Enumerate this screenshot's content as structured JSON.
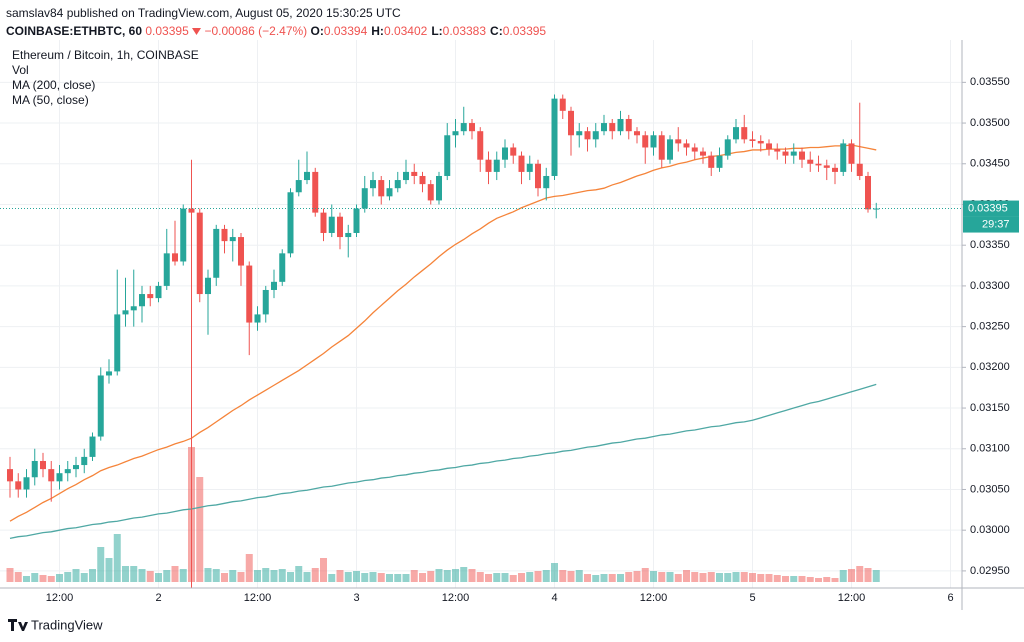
{
  "header": {
    "published": "samslav84 published on TradingView.com, August 05, 2020 15:30:25 UTC",
    "symbol": "COINBASE:ETHBTC, 60",
    "last": "0.03395",
    "change": "−0.00086 (−2.47%)",
    "ohlc": [
      {
        "label": "O:",
        "value": "0.03394"
      },
      {
        "label": "H:",
        "value": "0.03402"
      },
      {
        "label": "L:",
        "value": "0.03383"
      },
      {
        "label": "C:",
        "value": "0.03395"
      }
    ]
  },
  "chart_data": {
    "type": "candlestick",
    "title": "Ethereum / Bitcoin, 1h, COINBASE",
    "up_color": "#26a69a",
    "down_color": "#ef5350",
    "grid": true,
    "categories": [
      null,
      null,
      null,
      null,
      null,
      null,
      "12:00",
      null,
      null,
      null,
      null,
      null,
      null,
      null,
      null,
      null,
      null,
      null,
      "2",
      null,
      null,
      null,
      null,
      null,
      null,
      null,
      null,
      null,
      null,
      null,
      "12:00",
      null,
      null,
      null,
      null,
      null,
      null,
      null,
      null,
      null,
      null,
      null,
      "3",
      null,
      null,
      null,
      null,
      null,
      null,
      null,
      null,
      null,
      null,
      null,
      "12:00",
      null,
      null,
      null,
      null,
      null,
      null,
      null,
      null,
      null,
      null,
      null,
      "4",
      null,
      null,
      null,
      null,
      null,
      null,
      null,
      null,
      null,
      null,
      null,
      "12:00",
      null,
      null,
      null,
      null,
      null,
      null,
      null,
      null,
      null,
      null,
      null,
      "5",
      null,
      null,
      null,
      null,
      null,
      null,
      null,
      null,
      null,
      null,
      null,
      "12:00",
      null,
      null,
      null,
      null,
      null,
      null,
      null,
      null,
      null,
      null,
      null,
      "6",
      null
    ],
    "open": [
      0.03075,
      0.0306,
      0.0305,
      0.03065,
      0.03085,
      0.03075,
      0.0306,
      0.0307,
      0.03075,
      0.0308,
      0.0309,
      0.03115,
      0.0319,
      0.03195,
      0.03265,
      0.0327,
      0.03275,
      0.0329,
      0.03285,
      0.033,
      0.0334,
      0.0333,
      0.03395,
      0.0339,
      0.0329,
      0.0331,
      0.0337,
      0.03355,
      0.0336,
      0.03325,
      0.03255,
      0.03265,
      0.03295,
      0.03305,
      0.0334,
      0.03415,
      0.0343,
      0.0344,
      0.0339,
      0.03365,
      0.03385,
      0.0336,
      0.03365,
      0.03395,
      0.0342,
      0.0343,
      0.0341,
      0.0342,
      0.0343,
      0.0344,
      0.03435,
      0.03425,
      0.03405,
      0.03435,
      0.03485,
      0.0349,
      0.035,
      0.0349,
      0.03455,
      0.0344,
      0.03455,
      0.0347,
      0.0346,
      0.0344,
      0.0345,
      0.0342,
      0.03435,
      0.0353,
      0.03515,
      0.03485,
      0.0349,
      0.0348,
      0.0349,
      0.035,
      0.0349,
      0.03505,
      0.0349,
      0.03485,
      0.0347,
      0.03485,
      0.03455,
      0.0348,
      0.03475,
      0.0347,
      0.03465,
      0.0346,
      0.03445,
      0.0346,
      0.0348,
      0.03495,
      0.0348,
      0.03478,
      0.03475,
      0.03468,
      0.03465,
      0.0346,
      0.03465,
      0.03455,
      0.0345,
      0.03448,
      0.03445,
      0.0344,
      0.03475,
      0.0345,
      0.03435,
      0.03394,
      null,
      null,
      null,
      null,
      null,
      null,
      null,
      null,
      null,
      null
    ],
    "high": [
      0.0309,
      0.0307,
      0.03075,
      0.031,
      0.03095,
      0.03085,
      0.0308,
      0.03085,
      0.0309,
      0.031,
      0.0312,
      0.032,
      0.0321,
      0.0332,
      0.0331,
      0.0332,
      0.033,
      0.033,
      0.03305,
      0.0337,
      0.0338,
      0.034,
      0.03455,
      0.03395,
      0.0332,
      0.03375,
      0.03375,
      0.0337,
      0.03365,
      0.0333,
      0.03275,
      0.033,
      0.0332,
      0.03345,
      0.0342,
      0.03455,
      0.03465,
      0.03445,
      0.03395,
      0.034,
      0.0339,
      0.03375,
      0.034,
      0.03435,
      0.0344,
      0.03435,
      0.0343,
      0.0344,
      0.03455,
      0.0345,
      0.0344,
      0.0343,
      0.0344,
      0.035,
      0.03505,
      0.0352,
      0.03505,
      0.03495,
      0.03465,
      0.03465,
      0.0348,
      0.03475,
      0.03465,
      0.0346,
      0.03455,
      0.03445,
      0.03535,
      0.03535,
      0.0352,
      0.035,
      0.03495,
      0.035,
      0.0351,
      0.03505,
      0.03515,
      0.0351,
      0.03495,
      0.0349,
      0.0349,
      0.0349,
      0.03485,
      0.03495,
      0.0348,
      0.03475,
      0.0347,
      0.03465,
      0.0347,
      0.03485,
      0.03505,
      0.0351,
      0.0349,
      0.03485,
      0.0348,
      0.03475,
      0.0347,
      0.03475,
      0.0347,
      0.03465,
      0.0346,
      0.03455,
      0.0345,
      0.0348,
      0.0348,
      0.03525,
      0.0344,
      0.03402,
      null,
      null,
      null,
      null,
      null,
      null,
      null,
      null,
      null,
      null
    ],
    "low": [
      0.0304,
      0.0304,
      0.0304,
      0.03055,
      0.03065,
      0.03035,
      0.0305,
      0.0306,
      0.03065,
      0.0307,
      0.03085,
      0.0311,
      0.0318,
      0.0319,
      0.0325,
      0.0325,
      0.03255,
      0.03275,
      0.0328,
      0.03295,
      0.03325,
      0.03325,
      0.0291,
      0.0328,
      0.0324,
      0.033,
      0.0334,
      0.0333,
      0.033,
      0.03215,
      0.03245,
      0.03255,
      0.03285,
      0.033,
      0.03335,
      0.0341,
      0.03425,
      0.03385,
      0.03355,
      0.0336,
      0.03345,
      0.03335,
      0.0336,
      0.0339,
      0.0341,
      0.034,
      0.03405,
      0.03415,
      0.03425,
      0.03425,
      0.03415,
      0.034,
      0.034,
      0.0343,
      0.0347,
      0.03485,
      0.0348,
      0.0344,
      0.03425,
      0.0343,
      0.03445,
      0.0345,
      0.03425,
      0.0343,
      0.0341,
      0.03405,
      0.0343,
      0.03505,
      0.0346,
      0.0347,
      0.03465,
      0.0347,
      0.03485,
      0.0348,
      0.03485,
      0.0348,
      0.03475,
      0.0345,
      0.0346,
      0.03445,
      0.0345,
      0.03465,
      0.0346,
      0.03455,
      0.0345,
      0.03435,
      0.0344,
      0.03455,
      0.03475,
      0.03475,
      0.0347,
      0.03465,
      0.0346,
      0.03455,
      0.0345,
      0.0345,
      0.03445,
      0.0344,
      0.0344,
      0.0343,
      0.03425,
      0.03435,
      0.0344,
      0.0343,
      0.0339,
      0.03383,
      null,
      null,
      null,
      null,
      null,
      null,
      null,
      null,
      null,
      null
    ],
    "close": [
      0.0306,
      0.0305,
      0.03065,
      0.03085,
      0.03075,
      0.0306,
      0.0307,
      0.03075,
      0.0308,
      0.0309,
      0.03115,
      0.0319,
      0.03195,
      0.03265,
      0.0327,
      0.03275,
      0.0329,
      0.03285,
      0.033,
      0.0334,
      0.0333,
      0.03395,
      0.0339,
      0.0329,
      0.0331,
      0.0337,
      0.03355,
      0.0336,
      0.03325,
      0.03255,
      0.03265,
      0.03295,
      0.03305,
      0.0334,
      0.03415,
      0.0343,
      0.0344,
      0.0339,
      0.03365,
      0.03385,
      0.0336,
      0.03365,
      0.03395,
      0.0342,
      0.0343,
      0.0341,
      0.0342,
      0.0343,
      0.0344,
      0.03435,
      0.03425,
      0.03405,
      0.03435,
      0.03485,
      0.0349,
      0.035,
      0.0349,
      0.03455,
      0.0344,
      0.03455,
      0.0347,
      0.0346,
      0.0344,
      0.0345,
      0.0342,
      0.03435,
      0.0353,
      0.03515,
      0.03485,
      0.0349,
      0.0348,
      0.0349,
      0.035,
      0.0349,
      0.03505,
      0.0349,
      0.03485,
      0.0347,
      0.03485,
      0.03455,
      0.0348,
      0.03475,
      0.0347,
      0.03465,
      0.0346,
      0.03445,
      0.0346,
      0.0348,
      0.03495,
      0.0348,
      0.03478,
      0.03475,
      0.03468,
      0.03465,
      0.0346,
      0.03465,
      0.03455,
      0.0345,
      0.03448,
      0.03445,
      0.0344,
      0.03475,
      0.0345,
      0.03435,
      0.03394,
      0.03395,
      null,
      null,
      null,
      null,
      null,
      null,
      null,
      null,
      null,
      null
    ],
    "volume": {
      "name": "Vol",
      "up_color": "rgba(38,166,154,0.5)",
      "down_color": "rgba(239,83,80,0.5)",
      "values": [
        14,
        10,
        6,
        9,
        7,
        6,
        8,
        10,
        13,
        9,
        13,
        35,
        24,
        48,
        16,
        16,
        13,
        11,
        9,
        12,
        16,
        13,
        135,
        105,
        14,
        13,
        9,
        12,
        10,
        28,
        12,
        14,
        12,
        13,
        10,
        16,
        10,
        14,
        24,
        8,
        12,
        10,
        11,
        9,
        10,
        9,
        8,
        8,
        8,
        12,
        9,
        11,
        13,
        12,
        13,
        15,
        13,
        10,
        8,
        9,
        9,
        7,
        9,
        10,
        11,
        12,
        19,
        12,
        11,
        12,
        8,
        7,
        8,
        8,
        8,
        10,
        11,
        14,
        11,
        10,
        10,
        8,
        12,
        10,
        9,
        10,
        9,
        9,
        10,
        10,
        9,
        8,
        8,
        7,
        6,
        6,
        6,
        5,
        4,
        5,
        4,
        12,
        13,
        16,
        14,
        12,
        null,
        null,
        null,
        null,
        null,
        null,
        null,
        null,
        null,
        null
      ]
    },
    "series": [
      {
        "name": "MA (200, close)",
        "color": "#4fa8a4",
        "values": [
          0.0299,
          0.02992,
          0.02993,
          0.02995,
          0.02997,
          0.02998,
          0.03,
          0.03002,
          0.03003,
          0.03005,
          0.03007,
          0.03008,
          0.0301,
          0.03011,
          0.03013,
          0.03015,
          0.03016,
          0.03018,
          0.0302,
          0.03021,
          0.03023,
          0.03025,
          0.03026,
          0.03028,
          0.0303,
          0.03031,
          0.03033,
          0.03035,
          0.03036,
          0.03038,
          0.0304,
          0.03041,
          0.03043,
          0.03045,
          0.03046,
          0.03048,
          0.03049,
          0.03051,
          0.03053,
          0.03054,
          0.03056,
          0.03058,
          0.03059,
          0.03061,
          0.03062,
          0.03064,
          0.03065,
          0.03067,
          0.03068,
          0.0307,
          0.03071,
          0.03073,
          0.03074,
          0.03076,
          0.03077,
          0.03079,
          0.0308,
          0.03082,
          0.03083,
          0.03085,
          0.03086,
          0.03088,
          0.03089,
          0.03091,
          0.03092,
          0.03094,
          0.03095,
          0.03097,
          0.03098,
          0.031,
          0.03102,
          0.03103,
          0.03105,
          0.03107,
          0.03108,
          0.0311,
          0.03112,
          0.03113,
          0.03115,
          0.03117,
          0.03118,
          0.0312,
          0.03122,
          0.03123,
          0.03125,
          0.03127,
          0.03128,
          0.0313,
          0.03132,
          0.03133,
          0.03135,
          0.03138,
          0.03141,
          0.03144,
          0.03147,
          0.0315,
          0.03153,
          0.03156,
          0.03158,
          0.03161,
          0.03164,
          0.03167,
          0.0317,
          0.03173,
          0.03176,
          0.03179,
          null,
          null,
          null,
          null,
          null,
          null,
          null,
          null,
          null,
          null
        ]
      },
      {
        "name": "MA (50, close)",
        "color": "#f5843a",
        "values": [
          0.03011,
          0.03017,
          0.03022,
          0.03028,
          0.03034,
          0.03039,
          0.03045,
          0.03051,
          0.03056,
          0.03062,
          0.03067,
          0.03073,
          0.03077,
          0.0308,
          0.03084,
          0.03088,
          0.03091,
          0.03095,
          0.03099,
          0.03102,
          0.03106,
          0.03109,
          0.03113,
          0.0312,
          0.03126,
          0.03133,
          0.0314,
          0.03147,
          0.03153,
          0.0316,
          0.03166,
          0.03172,
          0.03178,
          0.03184,
          0.0319,
          0.03196,
          0.03203,
          0.0321,
          0.03217,
          0.03225,
          0.03232,
          0.03239,
          0.03248,
          0.03257,
          0.03267,
          0.03276,
          0.03285,
          0.03294,
          0.03302,
          0.03311,
          0.03319,
          0.03327,
          0.03336,
          0.03344,
          0.03351,
          0.03357,
          0.03364,
          0.0337,
          0.03377,
          0.03383,
          0.03387,
          0.03391,
          0.03396,
          0.034,
          0.03404,
          0.03408,
          0.0341,
          0.03411,
          0.03413,
          0.03415,
          0.03417,
          0.03418,
          0.0342,
          0.03424,
          0.03427,
          0.03431,
          0.03435,
          0.03438,
          0.03442,
          0.03445,
          0.03447,
          0.0345,
          0.03452,
          0.03455,
          0.03457,
          0.03459,
          0.0346,
          0.03462,
          0.03464,
          0.03465,
          0.03467,
          0.03467,
          0.03468,
          0.03468,
          0.03468,
          0.03469,
          0.03469,
          0.0347,
          0.0347,
          0.03471,
          0.03472,
          0.03472,
          0.03473,
          0.03471,
          0.03469,
          0.03467,
          null,
          null,
          null,
          null,
          null,
          null,
          null,
          null,
          null,
          null
        ]
      }
    ],
    "countdown": "29:37",
    "ylim": [
      0.02929,
      0.03602
    ],
    "yticks": [
      {
        "value": 0.0295,
        "label": "0.02950"
      },
      {
        "value": 0.03,
        "label": "0.03000"
      },
      {
        "value": 0.0305,
        "label": "0.03050"
      },
      {
        "value": 0.031,
        "label": "0.03100"
      },
      {
        "value": 0.0315,
        "label": "0.03150"
      },
      {
        "value": 0.032,
        "label": "0.03200"
      },
      {
        "value": 0.0325,
        "label": "0.03250"
      },
      {
        "value": 0.033,
        "label": "0.03300"
      },
      {
        "value": 0.0335,
        "label": "0.03350"
      },
      {
        "value": 0.034,
        "label": "0.03400"
      },
      {
        "value": 0.0345,
        "label": "0.03450"
      },
      {
        "value": 0.035,
        "label": "0.03500"
      },
      {
        "value": 0.0355,
        "label": "0.03550"
      }
    ]
  },
  "footer": {
    "brand": "TradingView"
  }
}
